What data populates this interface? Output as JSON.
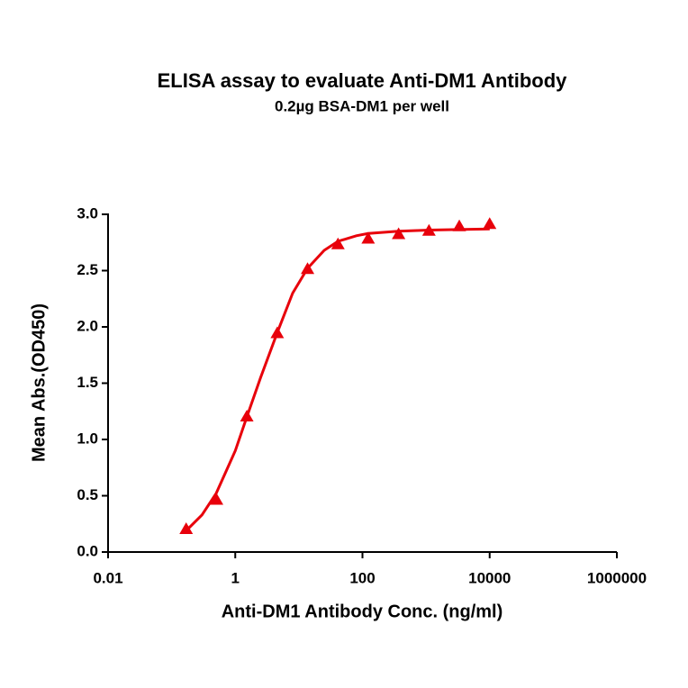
{
  "chart_data": {
    "type": "scatter",
    "title": "ELISA assay to evaluate Anti-DM1 Antibody",
    "subtitle": "0.2µg BSA-DM1 per well",
    "x_label": "Anti-DM1 Antibody Conc. (ng/ml)",
    "y_label": "Mean Abs.(OD450)",
    "x_scale": "log",
    "xlim": [
      0.01,
      1000000
    ],
    "xticks": [
      0.01,
      1,
      100,
      10000,
      1000000
    ],
    "ylim": [
      0,
      3
    ],
    "yticks": [
      {
        "value": 0,
        "label": "0.0"
      },
      0.5,
      {
        "value": 1,
        "label": "1.0"
      },
      1.5,
      {
        "value": 2,
        "label": "2.0"
      },
      2.5,
      {
        "value": 3,
        "label": "3.0"
      }
    ],
    "series": [
      {
        "type": "scatter",
        "color": "#e8000b",
        "x": [
          0.169,
          0.508,
          1.52,
          4.57,
          13.7,
          41.2,
          123,
          370,
          1111,
          3333,
          10000
        ],
        "values": [
          0.2,
          0.46,
          1.2,
          1.94,
          2.51,
          2.73,
          2.78,
          2.82,
          2.85,
          2.89,
          2.91
        ]
      },
      {
        "type": "line",
        "color": "#e8000b",
        "x": [
          0.169,
          0.3,
          0.5,
          1,
          1.52,
          2.5,
          4.57,
          8,
          13.7,
          25,
          41.2,
          80,
          123,
          370,
          1111,
          10000
        ],
        "values": [
          0.19,
          0.33,
          0.52,
          0.9,
          1.2,
          1.55,
          1.95,
          2.3,
          2.52,
          2.68,
          2.76,
          2.81,
          2.83,
          2.85,
          2.86,
          2.87
        ]
      }
    ]
  }
}
